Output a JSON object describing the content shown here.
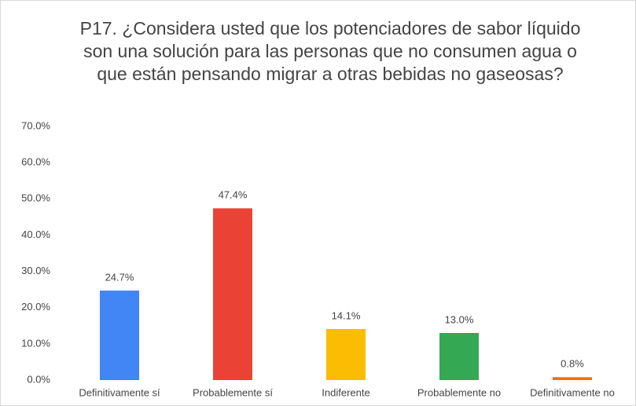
{
  "chart_data": {
    "type": "bar",
    "title": "P17. ¿Considera usted que los potenciadores de sabor líquido son una solución para las personas que no consumen agua o que están pensando migrar a otras bebidas no gaseosas?",
    "categories": [
      "Definitivamente sí",
      "Probablemente sí",
      "Indiferente",
      "Probablemente no",
      "Definitivamente no"
    ],
    "values": [
      24.7,
      47.4,
      14.1,
      13.0,
      0.8
    ],
    "value_labels": [
      "24.7%",
      "47.4%",
      "14.1%",
      "13.0%",
      "0.8%"
    ],
    "colors": [
      "#4285f4",
      "#ea4335",
      "#fbbc04",
      "#34a853",
      "#ff6d01"
    ],
    "ylim": [
      0,
      70
    ],
    "yticks": [
      {
        "value": 0,
        "label": "0.0%"
      },
      {
        "value": 10,
        "label": "10.0%"
      },
      {
        "value": 20,
        "label": "20.0%"
      },
      {
        "value": 30,
        "label": "30.0%"
      },
      {
        "value": 40,
        "label": "40.0%"
      },
      {
        "value": 50,
        "label": "50.0%"
      },
      {
        "value": 60,
        "label": "60.0%"
      },
      {
        "value": 70,
        "label": "70.0%"
      }
    ],
    "grid": false
  }
}
